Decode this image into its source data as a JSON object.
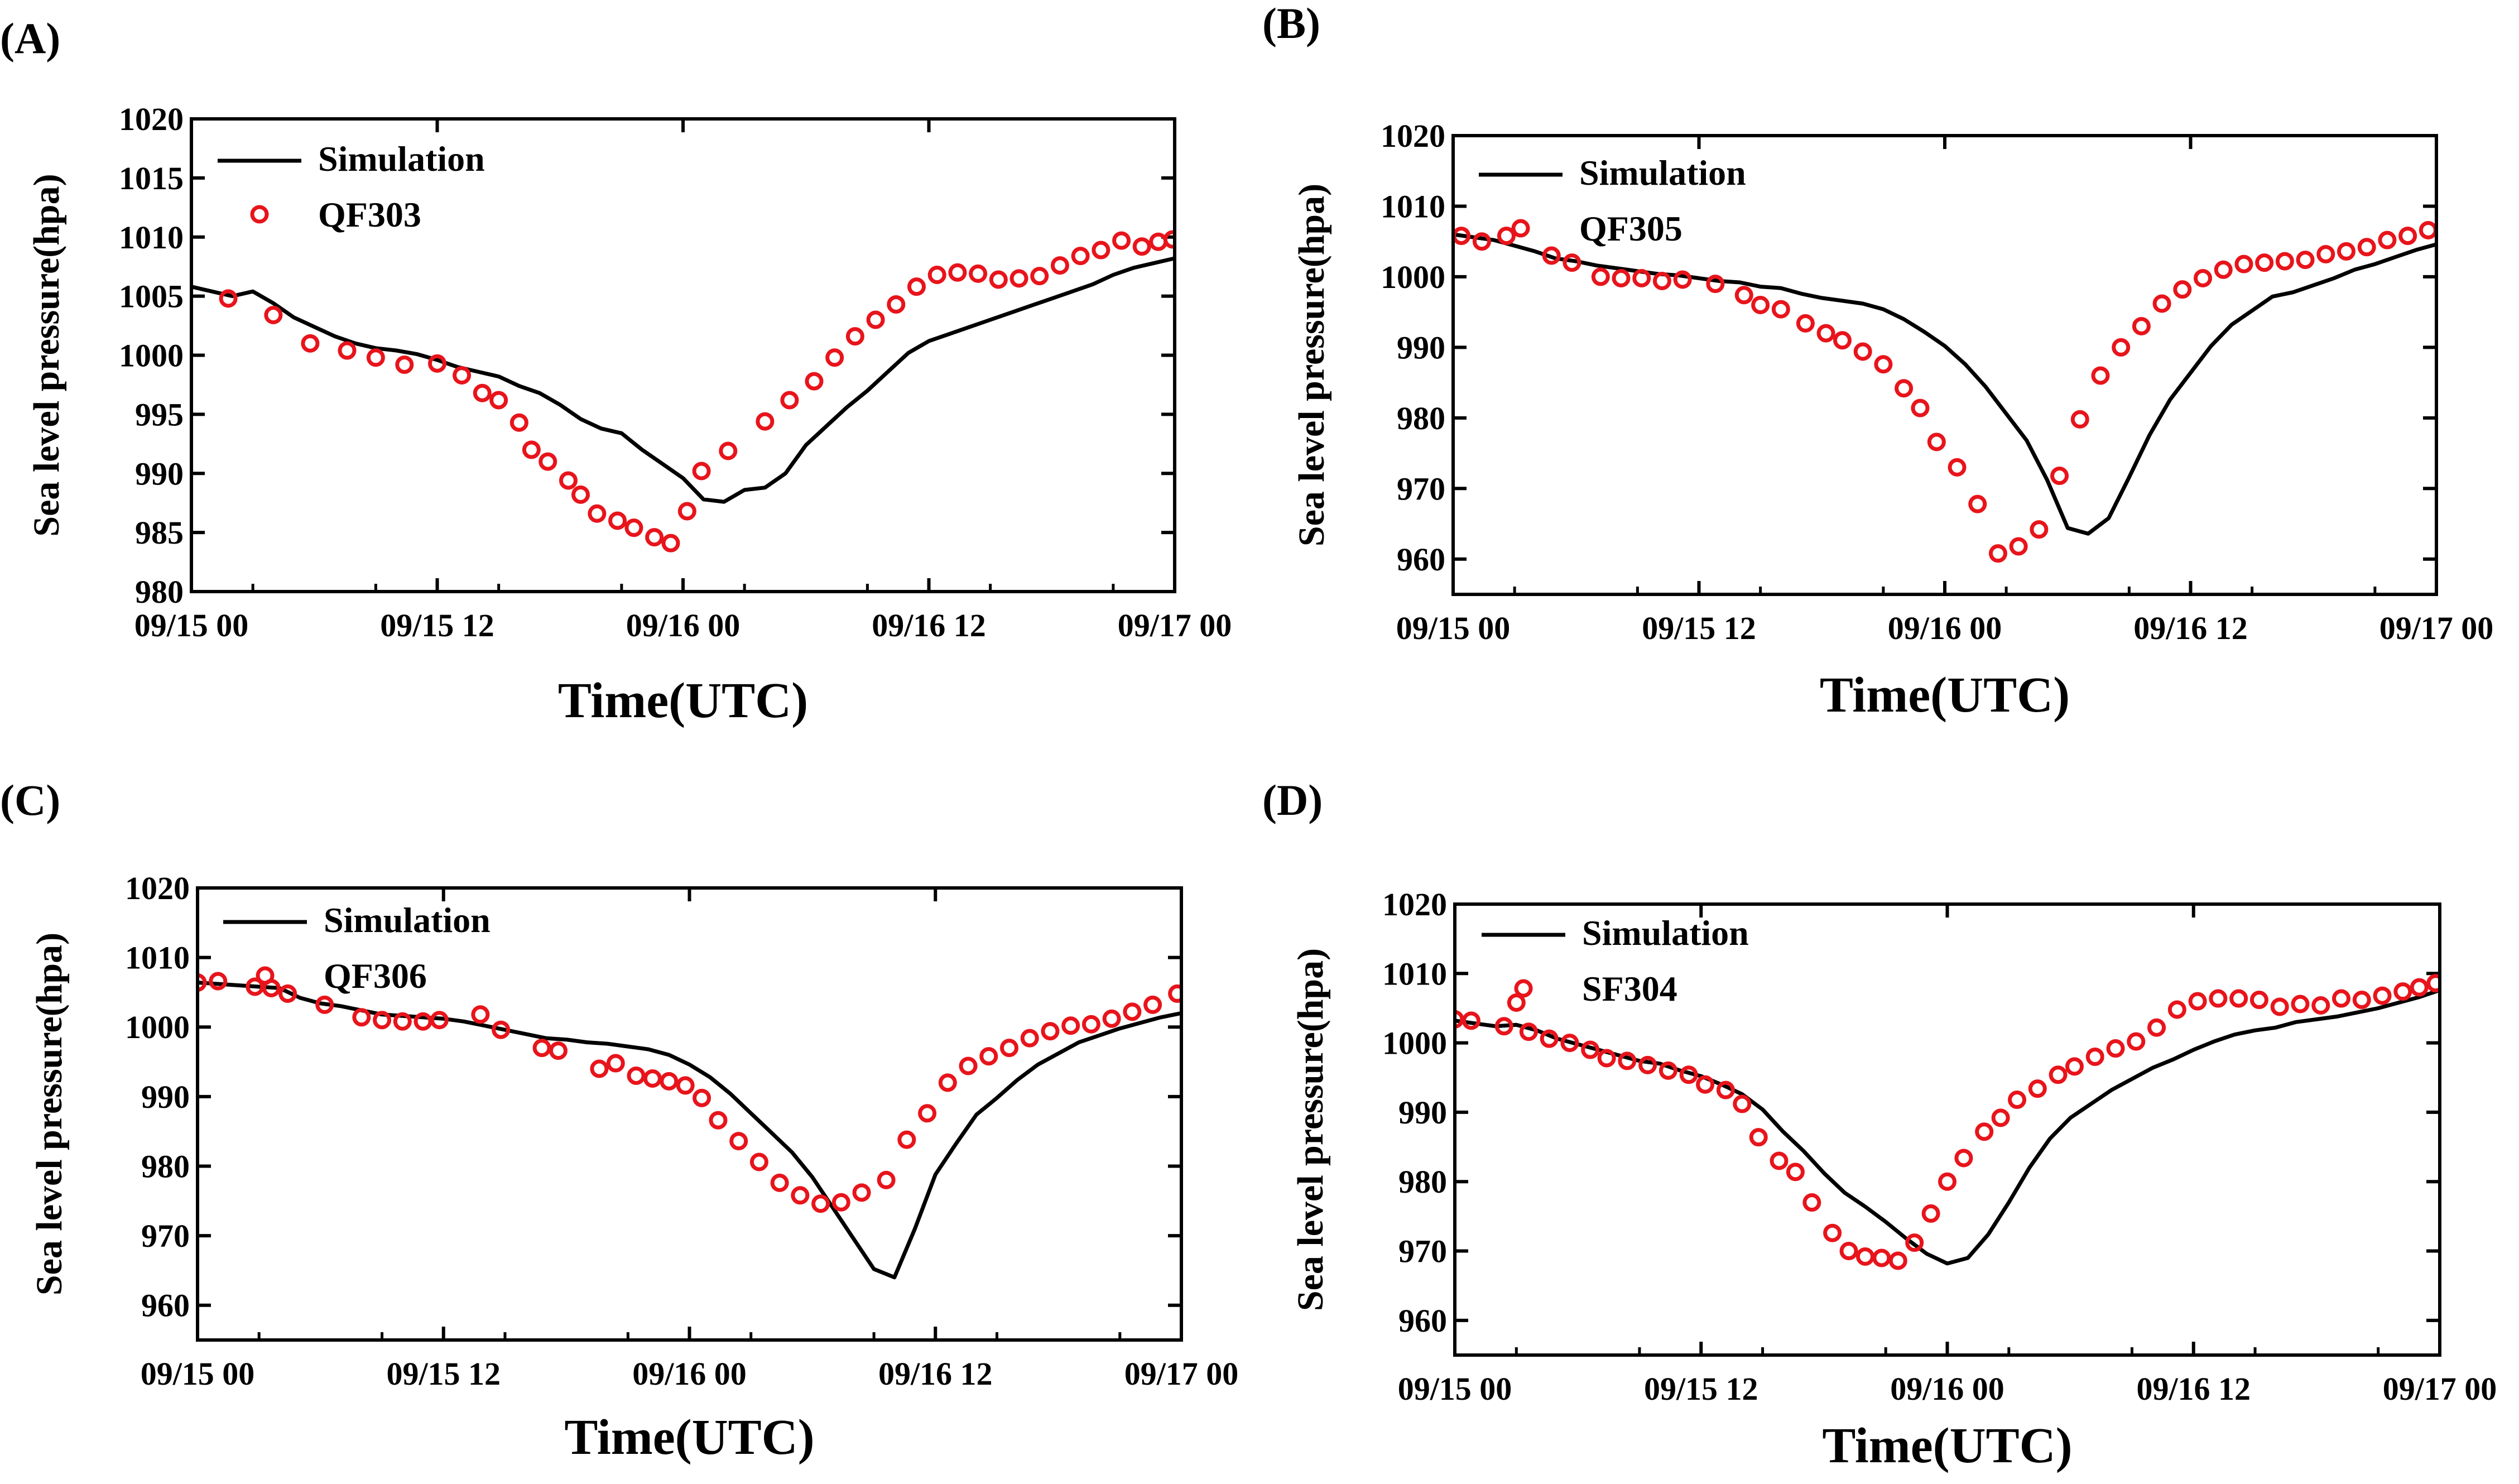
{
  "figure": {
    "panels_count": 4,
    "colors": {
      "simulation": "#000000",
      "observation": "#e8141b",
      "axis": "#000000",
      "background": "#ffffff"
    }
  },
  "chart_data": [
    {
      "type": "line",
      "panel_label": "(A)",
      "xlabel": "Time(UTC)",
      "ylabel": "Sea level pressure(hpa)",
      "xlim": [
        0,
        48
      ],
      "ylim": [
        980,
        1020
      ],
      "xticks": [
        0,
        12,
        24,
        36,
        48
      ],
      "xtick_labels": [
        "09/15 00",
        "09/15 12",
        "09/16 00",
        "09/16 12",
        "09/17 00"
      ],
      "yticks": [
        980,
        985,
        990,
        995,
        1000,
        1005,
        1010,
        1015,
        1020
      ],
      "ytick_labels": [
        "980",
        "985",
        "990",
        "995",
        "1000",
        "1005",
        "1010",
        "1015",
        "1020"
      ],
      "legend_position": "top-left",
      "series": [
        {
          "name": "Simulation",
          "style": "line",
          "x": [
            0,
            1,
            2,
            3,
            4,
            5,
            6,
            7,
            8,
            9,
            10,
            11,
            12,
            13,
            14,
            15,
            16,
            17,
            18,
            19,
            20,
            21,
            22,
            23,
            24,
            25,
            26,
            27,
            28,
            29,
            30,
            31,
            32,
            33,
            34,
            35,
            36,
            37,
            38,
            39,
            40,
            41,
            42,
            43,
            44,
            45,
            46,
            47,
            48
          ],
          "y": [
            1005.8,
            1005.4,
            1005.0,
            1005.4,
            1004.4,
            1003.2,
            1002.4,
            1001.6,
            1001.0,
            1000.6,
            1000.4,
            1000.1,
            999.6,
            999.0,
            998.6,
            998.2,
            997.4,
            996.8,
            995.8,
            994.6,
            993.8,
            993.4,
            992.0,
            990.8,
            989.6,
            987.8,
            987.6,
            988.6,
            988.8,
            990.0,
            992.4,
            994.0,
            995.6,
            997.0,
            998.6,
            1000.2,
            1001.2,
            1001.8,
            1002.4,
            1003.0,
            1003.6,
            1004.2,
            1004.8,
            1005.4,
            1006.0,
            1006.8,
            1007.4,
            1007.8,
            1008.2
          ]
        },
        {
          "name": "QF303",
          "style": "markers",
          "x": [
            1.8,
            4,
            5.8,
            7.6,
            9,
            10.4,
            12,
            13.2,
            14.2,
            15,
            16,
            16.6,
            17.4,
            18.4,
            19,
            19.8,
            20.8,
            21.6,
            22.6,
            23.4,
            24.2,
            24.9,
            26.2,
            28,
            29.2,
            30.4,
            31.4,
            32.4,
            33.4,
            34.4,
            35.4,
            36.4,
            37.4,
            38.4,
            39.4,
            40.4,
            41.4,
            42.4,
            43.4,
            44.4,
            45.4,
            46.4,
            47.2,
            47.9
          ],
          "y": [
            1004.8,
            1003.4,
            1001.0,
            1000.4,
            999.8,
            999.2,
            999.3,
            998.3,
            996.8,
            996.2,
            994.3,
            992.0,
            991.0,
            989.4,
            988.2,
            986.6,
            986.0,
            985.4,
            984.6,
            984.1,
            986.8,
            990.2,
            991.9,
            994.4,
            996.2,
            997.8,
            999.8,
            1001.6,
            1003.0,
            1004.3,
            1005.8,
            1006.8,
            1007.0,
            1006.9,
            1006.4,
            1006.5,
            1006.7,
            1007.6,
            1008.4,
            1008.9,
            1009.7,
            1009.2,
            1009.6,
            1009.8
          ]
        }
      ]
    },
    {
      "type": "line",
      "panel_label": "(B)",
      "xlabel": "Time(UTC)",
      "ylabel": "Sea level pressure(hpa)",
      "xlim": [
        0,
        48
      ],
      "ylim": [
        955,
        1020
      ],
      "xticks": [
        0,
        12,
        24,
        36,
        48
      ],
      "xtick_labels": [
        "09/15 00",
        "09/15 12",
        "09/16 00",
        "09/16 12",
        "09/17 00"
      ],
      "yticks": [
        960,
        970,
        980,
        990,
        1000,
        1010,
        1020
      ],
      "ytick_labels": [
        "960",
        "970",
        "980",
        "990",
        "1000",
        "1010",
        "1020"
      ],
      "legend_position": "top-left",
      "series": [
        {
          "name": "Simulation",
          "style": "line",
          "x": [
            0,
            1,
            2,
            3,
            4,
            5,
            6,
            7,
            8,
            9,
            10,
            11,
            12,
            13,
            14,
            15,
            16,
            17,
            18,
            19,
            20,
            21,
            22,
            23,
            24,
            25,
            26,
            27,
            28,
            29,
            30,
            31,
            32,
            33,
            34,
            35,
            36,
            37,
            38,
            39,
            40,
            41,
            42,
            43,
            44,
            45,
            46,
            47,
            48
          ],
          "y": [
            1006.0,
            1005.6,
            1005.2,
            1004.4,
            1003.6,
            1002.6,
            1002.2,
            1001.6,
            1001.2,
            1000.8,
            1000.4,
            1000.2,
            999.8,
            999.4,
            999.2,
            998.6,
            998.4,
            997.6,
            997.0,
            996.6,
            996.2,
            995.4,
            994.0,
            992.2,
            990.2,
            987.6,
            984.4,
            980.6,
            976.8,
            971.2,
            964.4,
            963.6,
            965.8,
            971.6,
            977.6,
            982.6,
            986.4,
            990.2,
            993.2,
            995.2,
            997.2,
            997.8,
            998.8,
            999.8,
            1001.0,
            1001.8,
            1002.8,
            1003.8,
            1004.6
          ]
        },
        {
          "name": "QF305",
          "style": "markers",
          "x": [
            0.4,
            1.4,
            2.6,
            4.8,
            5.8,
            7.2,
            8.2,
            9.2,
            10.2,
            11.2,
            12.8,
            14.2,
            15.0,
            16.0,
            17.2,
            18.2,
            19.0,
            20.0,
            21.0,
            22.0,
            22.8,
            23.6,
            24.6,
            25.6,
            26.6,
            27.6,
            28.6,
            29.6,
            30.6,
            31.6,
            32.6,
            33.6,
            34.6,
            35.6,
            36.6,
            37.6,
            38.6,
            39.6,
            40.6,
            41.6,
            42.6,
            43.6,
            44.6,
            45.6,
            46.6,
            47.6
          ],
          "y": [
            1005.8,
            1005.0,
            1005.8,
            1003.0,
            1002.0,
            1000.0,
            999.8,
            999.8,
            999.4,
            999.6,
            999.0,
            997.4,
            996.0,
            995.4,
            993.4,
            992.0,
            991.0,
            989.4,
            987.6,
            984.2,
            981.4,
            976.6,
            973.0,
            967.8,
            960.8,
            961.8,
            964.2,
            971.8,
            979.8,
            986.0,
            990.0,
            993.0,
            996.2,
            998.2,
            999.8,
            1001.0,
            1001.8,
            1002.0,
            1002.2,
            1002.4,
            1003.2,
            1003.6,
            1004.2,
            1005.2,
            1005.8,
            1006.6
          ]
        }
      ]
    },
    {
      "type": "line",
      "panel_label": "(C)",
      "xlabel": "Time(UTC)",
      "ylabel": "Sea level pressure(hpa)",
      "xlim": [
        0,
        48
      ],
      "ylim": [
        955,
        1020
      ],
      "xticks": [
        0,
        12,
        24,
        36,
        48
      ],
      "xtick_labels": [
        "09/15 00",
        "09/15 12",
        "09/16 00",
        "09/16 12",
        "09/17 00"
      ],
      "yticks": [
        960,
        970,
        980,
        990,
        1000,
        1010,
        1020
      ],
      "ytick_labels": [
        "960",
        "970",
        "980",
        "990",
        "1000",
        "1010",
        "1020"
      ],
      "legend_position": "top-left",
      "series": [
        {
          "name": "Simulation",
          "style": "line",
          "x": [
            0,
            1,
            2,
            3,
            4,
            5,
            6,
            7,
            8,
            9,
            10,
            11,
            12,
            13,
            14,
            15,
            16,
            17,
            18,
            19,
            20,
            21,
            22,
            23,
            24,
            25,
            26,
            27,
            28,
            29,
            30,
            31,
            32,
            33,
            34,
            35,
            36,
            37,
            38,
            39,
            40,
            41,
            42,
            43,
            44,
            45,
            46,
            47,
            48
          ],
          "y": [
            1006.4,
            1006.2,
            1006.0,
            1005.8,
            1005.6,
            1004.2,
            1003.4,
            1003.0,
            1002.4,
            1001.8,
            1001.6,
            1001.4,
            1001.2,
            1000.8,
            1000.2,
            999.6,
            999.0,
            998.4,
            998.2,
            997.8,
            997.6,
            997.2,
            996.8,
            996.0,
            994.6,
            992.8,
            990.4,
            987.6,
            984.8,
            982.0,
            978.4,
            974.0,
            969.6,
            965.2,
            964.0,
            971.0,
            978.8,
            983.2,
            987.4,
            989.8,
            992.4,
            994.6,
            996.2,
            997.8,
            998.8,
            999.8,
            1000.6,
            1001.4,
            1002.0
          ]
        },
        {
          "name": "QF306",
          "style": "markers",
          "x": [
            0,
            1.0,
            2.8,
            3.6,
            4.4,
            6.2,
            8.0,
            9.0,
            10.0,
            11.0,
            11.8,
            13.8,
            14.8,
            16.8,
            17.6,
            19.6,
            20.4,
            21.4,
            22.2,
            23.0,
            23.8,
            24.6,
            25.4,
            26.4,
            27.4,
            28.4,
            29.4,
            30.4,
            31.4,
            32.4,
            33.6,
            34.6,
            35.6,
            36.6,
            37.6,
            38.6,
            39.6,
            40.6,
            41.6,
            42.6,
            43.6,
            44.6,
            45.6,
            46.6,
            47.8
          ],
          "y": [
            1006.4,
            1006.6,
            1005.8,
            1005.6,
            1004.8,
            1003.2,
            1001.4,
            1001.0,
            1000.8,
            1000.8,
            1001.0,
            1001.8,
            999.6,
            997.0,
            996.6,
            994.0,
            994.8,
            993.0,
            992.6,
            992.2,
            991.6,
            989.8,
            986.6,
            983.6,
            980.6,
            977.6,
            975.8,
            974.6,
            974.8,
            976.2,
            978.0,
            983.8,
            987.6,
            992.0,
            994.4,
            995.8,
            997.0,
            998.4,
            999.4,
            1000.2,
            1000.4,
            1001.2,
            1002.2,
            1003.2,
            1004.8
          ]
        }
      ]
    },
    {
      "type": "line",
      "panel_label": "(D)",
      "xlabel": "Time(UTC)",
      "ylabel": "Sea level pressure(hpa)",
      "xlim": [
        0,
        48
      ],
      "ylim": [
        955,
        1020
      ],
      "xticks": [
        0,
        12,
        24,
        36,
        48
      ],
      "xtick_labels": [
        "09/15 00",
        "09/15 12",
        "09/16 00",
        "09/16 12",
        "09/17 00"
      ],
      "yticks": [
        960,
        970,
        980,
        990,
        1000,
        1010,
        1020
      ],
      "ytick_labels": [
        "960",
        "970",
        "980",
        "990",
        "1000",
        "1010",
        "1020"
      ],
      "legend_position": "top-left",
      "series": [
        {
          "name": "Simulation",
          "style": "line",
          "x": [
            0,
            1,
            2,
            3,
            4,
            5,
            6,
            7,
            8,
            9,
            10,
            11,
            12,
            13,
            14,
            15,
            16,
            17,
            18,
            19,
            20,
            21,
            22,
            23,
            24,
            25,
            26,
            27,
            28,
            29,
            30,
            31,
            32,
            33,
            34,
            35,
            36,
            37,
            38,
            39,
            40,
            41,
            42,
            43,
            44,
            45,
            46,
            47,
            48
          ],
          "y": [
            1003.2,
            1002.8,
            1002.4,
            1002.6,
            1001.8,
            1000.6,
            999.8,
            999.0,
            998.2,
            997.4,
            997.0,
            996.0,
            995.2,
            994.0,
            992.6,
            990.4,
            987.2,
            984.4,
            981.2,
            978.4,
            976.4,
            974.2,
            971.8,
            969.6,
            968.2,
            969.0,
            972.4,
            977.0,
            982.0,
            986.2,
            989.2,
            991.2,
            993.2,
            994.8,
            996.4,
            997.6,
            999.0,
            1000.2,
            1001.2,
            1001.8,
            1002.2,
            1003.0,
            1003.4,
            1003.8,
            1004.4,
            1005.0,
            1005.8,
            1006.6,
            1007.6
          ]
        },
        {
          "name": "SF304",
          "style": "markers",
          "x": [
            0,
            0.8,
            2.4,
            3.0,
            3.6,
            4.6,
            5.6,
            6.6,
            7.4,
            8.4,
            9.4,
            10.4,
            11.4,
            12.2,
            13.2,
            14.0,
            14.8,
            15.8,
            16.6,
            17.4,
            18.4,
            19.2,
            20.0,
            20.8,
            21.6,
            22.4,
            23.2,
            24.0,
            24.8,
            25.8,
            26.6,
            27.4,
            28.4,
            29.4,
            30.2,
            31.2,
            32.2,
            33.2,
            34.2,
            35.2,
            36.2,
            37.2,
            38.2,
            39.2,
            40.2,
            41.2,
            42.2,
            43.2,
            44.2,
            45.2,
            46.2,
            47.0,
            47.8
          ],
          "y": [
            1003.4,
            1003.2,
            1002.4,
            1005.8,
            1001.6,
            1000.6,
            1000.0,
            999.0,
            997.8,
            997.4,
            996.8,
            996.0,
            995.4,
            994.0,
            993.2,
            991.2,
            986.4,
            983.0,
            981.4,
            977.0,
            972.6,
            970.0,
            969.2,
            969.0,
            968.6,
            971.2,
            975.4,
            980.0,
            983.4,
            987.2,
            989.2,
            991.8,
            993.4,
            995.4,
            996.6,
            998.0,
            999.2,
            1000.2,
            1002.2,
            1004.8,
            1006.0,
            1006.4,
            1006.4,
            1006.2,
            1005.2,
            1005.6,
            1005.4,
            1006.4,
            1006.2,
            1006.8,
            1007.4,
            1008.0,
            1008.6
          ]
        }
      ]
    }
  ]
}
